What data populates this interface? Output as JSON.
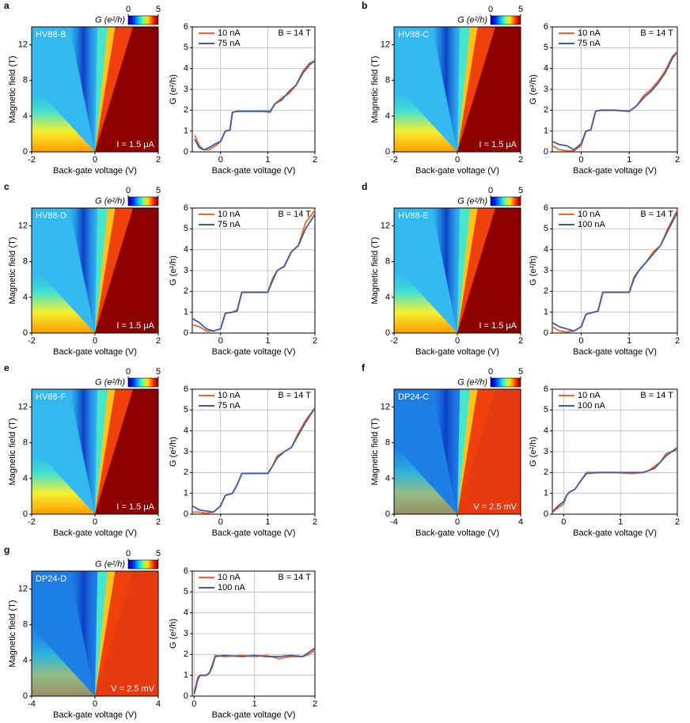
{
  "chart_data": [
    {
      "type": "heatmap",
      "panel": "a",
      "label": "HV88-B",
      "annotation": "I = 1.5 μA",
      "xlabel": "Back-gate voltage (V)",
      "ylabel": "Magnetic field (T)",
      "xlim": [
        -2,
        2
      ],
      "xticks": [
        -2,
        0,
        2
      ],
      "ylim": [
        0,
        14
      ],
      "yticks": [
        0,
        4,
        8,
        12
      ],
      "colorbar": {
        "label": "G (e²/h)",
        "lim": [
          0,
          5
        ],
        "ticks": [
          0,
          5
        ]
      }
    },
    {
      "type": "line",
      "xlabel": "Back-gate voltage (V)",
      "ylabel": "G (e²/h)",
      "annotation": "B = 14 T",
      "xlim": [
        -0.6,
        2
      ],
      "xticks": [
        0,
        1,
        2
      ],
      "ylim": [
        0,
        6
      ],
      "yticks": [
        0,
        1,
        2,
        3,
        4,
        5,
        6
      ],
      "grid": true,
      "legend": "upper left",
      "x": [
        -0.55,
        -0.45,
        -0.35,
        -0.25,
        -0.1,
        0,
        0.1,
        0.2,
        0.25,
        0.35,
        0.6,
        0.9,
        1.05,
        1.15,
        1.3,
        1.45,
        1.6,
        1.75,
        1.9,
        2
      ],
      "series": [
        {
          "name": "10 nA",
          "color": "#f26522",
          "values": [
            0.8,
            0.3,
            0.1,
            0.1,
            0.3,
            0.5,
            1.0,
            1.05,
            1.9,
            1.95,
            1.95,
            1.95,
            1.9,
            2.3,
            2.6,
            2.8,
            3.2,
            3.9,
            4.3,
            4.3
          ]
        },
        {
          "name": "75 nA",
          "color": "#3b5ba9",
          "values": [
            0.6,
            0.2,
            0.1,
            0.2,
            0.4,
            0.5,
            1.0,
            1.05,
            1.9,
            1.95,
            1.95,
            1.95,
            1.95,
            2.3,
            2.5,
            2.9,
            3.2,
            3.8,
            4.2,
            4.4
          ]
        }
      ]
    },
    {
      "type": "heatmap",
      "panel": "b",
      "label": "HV88-C",
      "annotation": "I = 1.5 μA",
      "xlabel": "Back-gate voltage (V)",
      "ylabel": "Magnetic field (T)",
      "xlim": [
        -2,
        2
      ],
      "xticks": [
        -2,
        0,
        2
      ],
      "ylim": [
        0,
        14
      ],
      "yticks": [
        0,
        4,
        8,
        12
      ],
      "colorbar": {
        "label": "G (e²/h)",
        "lim": [
          0,
          5
        ],
        "ticks": [
          0,
          5
        ]
      }
    },
    {
      "type": "line",
      "xlabel": "Back-gate voltage (V)",
      "ylabel": "G (e²/h)",
      "annotation": "B = 14 T",
      "xlim": [
        -0.6,
        2
      ],
      "xticks": [
        0,
        1,
        2
      ],
      "ylim": [
        0,
        6
      ],
      "yticks": [
        0,
        1,
        2,
        3,
        4,
        5,
        6
      ],
      "grid": true,
      "legend": "upper left",
      "x": [
        -0.6,
        -0.45,
        -0.3,
        -0.15,
        0,
        0.1,
        0.2,
        0.3,
        0.4,
        0.7,
        1.0,
        1.15,
        1.3,
        1.45,
        1.6,
        1.75,
        1.9,
        2
      ],
      "series": [
        {
          "name": "10 nA",
          "color": "#f26522",
          "values": [
            0.3,
            0.1,
            0.05,
            0.05,
            0.3,
            1.0,
            1.05,
            1.95,
            2.0,
            2.0,
            1.95,
            2.2,
            2.7,
            3.0,
            3.4,
            3.9,
            4.6,
            4.8
          ]
        },
        {
          "name": "75 nA",
          "color": "#3b5ba9",
          "values": [
            0.5,
            0.35,
            0.3,
            0.1,
            0.4,
            1.0,
            1.05,
            1.95,
            2.0,
            2.0,
            1.95,
            2.2,
            2.6,
            2.9,
            3.3,
            3.8,
            4.5,
            4.8
          ]
        }
      ]
    },
    {
      "type": "heatmap",
      "panel": "c",
      "label": "HV88-D",
      "annotation": "I = 1.5 μA",
      "xlabel": "Back-gate voltage (V)",
      "ylabel": "Magnetic field (T)",
      "xlim": [
        -2,
        2
      ],
      "xticks": [
        -2,
        0,
        2
      ],
      "ylim": [
        0,
        14
      ],
      "yticks": [
        0,
        4,
        8,
        12
      ],
      "colorbar": {
        "label": "G (e²/h)",
        "lim": [
          0,
          5
        ],
        "ticks": [
          0,
          5
        ]
      }
    },
    {
      "type": "line",
      "xlabel": "Back-gate voltage (V)",
      "ylabel": "G (e²/h)",
      "annotation": "B = 14 T",
      "xlim": [
        -0.6,
        2
      ],
      "xticks": [
        0,
        1,
        2
      ],
      "ylim": [
        0,
        6
      ],
      "yticks": [
        0,
        1,
        2,
        3,
        4,
        5,
        6
      ],
      "grid": true,
      "legend": "upper left",
      "x": [
        -0.6,
        -0.45,
        -0.3,
        -0.15,
        0,
        0.1,
        0.25,
        0.35,
        0.45,
        0.7,
        1.0,
        1.1,
        1.2,
        1.35,
        1.5,
        1.65,
        1.8,
        2
      ],
      "series": [
        {
          "name": "10 nA",
          "color": "#f26522",
          "values": [
            0.4,
            0.3,
            0.1,
            0.1,
            0.2,
            0.95,
            1.0,
            1.1,
            1.95,
            1.95,
            1.95,
            2.6,
            3.0,
            3.2,
            3.9,
            4.2,
            5.3,
            5.9
          ]
        },
        {
          "name": "75 nA",
          "color": "#3b5ba9",
          "values": [
            0.7,
            0.5,
            0.2,
            0.1,
            0.2,
            0.95,
            1.0,
            1.05,
            1.95,
            1.95,
            1.95,
            2.5,
            3.0,
            3.2,
            3.9,
            4.2,
            5.0,
            5.7
          ]
        }
      ]
    },
    {
      "type": "heatmap",
      "panel": "d",
      "label": "HV88-E",
      "annotation": "I = 1.5 μA",
      "xlabel": "Back-gate voltage (V)",
      "ylabel": "Magnetic field (T)",
      "xlim": [
        -2,
        2
      ],
      "xticks": [
        -2,
        0,
        2
      ],
      "ylim": [
        0,
        14
      ],
      "yticks": [
        0,
        4,
        8,
        12
      ],
      "colorbar": {
        "label": "G (e²/h)",
        "lim": [
          0,
          5
        ],
        "ticks": [
          0,
          5
        ]
      }
    },
    {
      "type": "line",
      "xlabel": "Back-gate voltage (V)",
      "ylabel": "G (e²/h)",
      "annotation": "B = 14 T",
      "xlim": [
        -0.6,
        2
      ],
      "xticks": [
        0,
        1,
        2
      ],
      "ylim": [
        0,
        6
      ],
      "yticks": [
        0,
        1,
        2,
        3,
        4,
        5,
        6
      ],
      "grid": true,
      "legend": "upper left",
      "x": [
        -0.6,
        -0.45,
        -0.3,
        -0.15,
        0,
        0.1,
        0.25,
        0.35,
        0.45,
        0.7,
        1.0,
        1.1,
        1.2,
        1.35,
        1.5,
        1.65,
        1.8,
        2
      ],
      "series": [
        {
          "name": "10 nA",
          "color": "#f26522",
          "values": [
            0.3,
            0.1,
            0.05,
            0.1,
            0.3,
            0.9,
            1.0,
            1.05,
            1.95,
            1.95,
            1.95,
            2.7,
            3.0,
            3.4,
            3.9,
            4.2,
            5.0,
            5.9
          ]
        },
        {
          "name": "100 nA",
          "color": "#3b5ba9",
          "values": [
            0.5,
            0.3,
            0.2,
            0.1,
            0.3,
            0.9,
            1.0,
            1.05,
            1.95,
            1.95,
            1.95,
            2.6,
            3.0,
            3.4,
            3.8,
            4.2,
            4.9,
            5.8
          ]
        }
      ]
    },
    {
      "type": "heatmap",
      "panel": "e",
      "label": "HV88-F",
      "annotation": "I = 1.5 μA",
      "xlabel": "Back-gate voltage (V)",
      "ylabel": "Magnetic field (T)",
      "xlim": [
        -2,
        2
      ],
      "xticks": [
        -2,
        0,
        2
      ],
      "ylim": [
        0,
        14
      ],
      "yticks": [
        0,
        4,
        8,
        12
      ],
      "colorbar": {
        "label": "G (e²/h)",
        "lim": [
          0,
          5
        ],
        "ticks": [
          0,
          5
        ]
      }
    },
    {
      "type": "line",
      "xlabel": "Back-gate voltage (V)",
      "ylabel": "G (e²/h)",
      "annotation": "B = 14 T",
      "xlim": [
        -0.6,
        2
      ],
      "xticks": [
        0,
        1,
        2
      ],
      "ylim": [
        0,
        6
      ],
      "yticks": [
        0,
        1,
        2,
        3,
        4,
        5,
        6
      ],
      "grid": true,
      "legend": "upper left",
      "x": [
        -0.6,
        -0.45,
        -0.3,
        -0.15,
        0,
        0.1,
        0.25,
        0.35,
        0.45,
        0.7,
        1.0,
        1.1,
        1.2,
        1.35,
        1.5,
        1.65,
        1.8,
        2
      ],
      "series": [
        {
          "name": "10 nA",
          "color": "#f26522",
          "values": [
            0.1,
            0.1,
            0.05,
            0.1,
            0.4,
            0.9,
            1.0,
            1.4,
            1.95,
            1.95,
            1.95,
            2.3,
            2.8,
            3.0,
            3.2,
            3.9,
            4.5,
            5.1
          ]
        },
        {
          "name": "75 nA",
          "color": "#3b5ba9",
          "values": [
            0.4,
            0.2,
            0.15,
            0.1,
            0.4,
            0.9,
            1.0,
            1.4,
            1.95,
            1.95,
            1.95,
            2.3,
            2.7,
            3.0,
            3.2,
            3.8,
            4.4,
            5.1
          ]
        }
      ]
    },
    {
      "type": "heatmap",
      "panel": "f",
      "label": "DP24-C",
      "annotation": "V = 2.5 mV",
      "xlabel": "Back-gate voltage (V)",
      "ylabel": "Magnetic field (T)",
      "xlim": [
        -4,
        4
      ],
      "xticks": [
        -4,
        0,
        4
      ],
      "ylim": [
        0,
        14
      ],
      "yticks": [
        0,
        4,
        8,
        12
      ],
      "colorbar": {
        "label": "G (e²/h)",
        "lim": [
          0,
          5
        ],
        "ticks": [
          0,
          5
        ]
      }
    },
    {
      "type": "line",
      "xlabel": "Back-gate voltage (V)",
      "ylabel": "G (e²/h)",
      "annotation": "B = 14 T",
      "xlim": [
        -0.2,
        2
      ],
      "xticks": [
        0,
        1,
        2
      ],
      "ylim": [
        0,
        6
      ],
      "yticks": [
        0,
        1,
        2,
        3,
        4,
        5,
        6
      ],
      "grid": true,
      "legend": "upper left",
      "x": [
        -0.2,
        -0.1,
        0,
        0.05,
        0.1,
        0.2,
        0.3,
        0.4,
        0.6,
        0.9,
        1.2,
        1.4,
        1.5,
        1.6,
        1.7,
        1.8,
        1.9,
        2
      ],
      "series": [
        {
          "name": "10 nA",
          "color": "#f26522",
          "values": [
            0.1,
            0.3,
            0.5,
            0.9,
            1.05,
            1.2,
            1.6,
            2.0,
            2.0,
            2.0,
            1.95,
            2.0,
            2.1,
            2.3,
            2.5,
            2.9,
            3.0,
            3.1
          ]
        },
        {
          "name": "100 nA",
          "color": "#3b5ba9",
          "values": [
            0.1,
            0.4,
            0.6,
            0.9,
            1.05,
            1.2,
            1.6,
            1.95,
            2.0,
            2.0,
            2.0,
            2.0,
            2.1,
            2.2,
            2.5,
            2.8,
            3.0,
            3.2
          ]
        }
      ]
    },
    {
      "type": "heatmap",
      "panel": "g",
      "label": "DP24-D",
      "annotation": "V = 2.5 mV",
      "xlabel": "Back-gate voltage (V)",
      "ylabel": "Magnetic field (T)",
      "xlim": [
        -4,
        4
      ],
      "xticks": [
        -4,
        0,
        4
      ],
      "ylim": [
        0,
        14
      ],
      "yticks": [
        0,
        4,
        8,
        12
      ],
      "colorbar": {
        "label": "G (e²/h)",
        "lim": [
          0,
          5
        ],
        "ticks": [
          0,
          5
        ]
      }
    },
    {
      "type": "line",
      "xlabel": "Back-gate voltage (V)",
      "ylabel": "G (e²/h)",
      "annotation": "B = 14 T",
      "xlim": [
        -0.03,
        2
      ],
      "xticks": [
        0,
        1,
        2
      ],
      "ylim": [
        0,
        6
      ],
      "yticks": [
        0,
        1,
        2,
        3,
        4,
        5,
        6
      ],
      "grid": true,
      "legend": "upper left",
      "x": [
        0,
        0.03,
        0.06,
        0.1,
        0.15,
        0.2,
        0.25,
        0.3,
        0.35,
        0.5,
        0.8,
        1.0,
        1.2,
        1.4,
        1.6,
        1.8,
        1.9,
        2
      ],
      "series": [
        {
          "name": "10 nA",
          "color": "#f26522",
          "values": [
            0.2,
            0.5,
            0.9,
            1.0,
            1.0,
            1.0,
            1.1,
            1.5,
            1.95,
            1.9,
            1.95,
            1.9,
            1.95,
            1.8,
            1.9,
            1.9,
            2.0,
            2.2
          ]
        },
        {
          "name": "100 nA",
          "color": "#3b5ba9",
          "values": [
            0.1,
            0.4,
            0.8,
            1.0,
            1.0,
            1.0,
            1.1,
            1.4,
            1.9,
            1.95,
            1.9,
            1.95,
            1.9,
            1.9,
            1.95,
            1.9,
            2.1,
            2.3
          ]
        }
      ]
    }
  ]
}
